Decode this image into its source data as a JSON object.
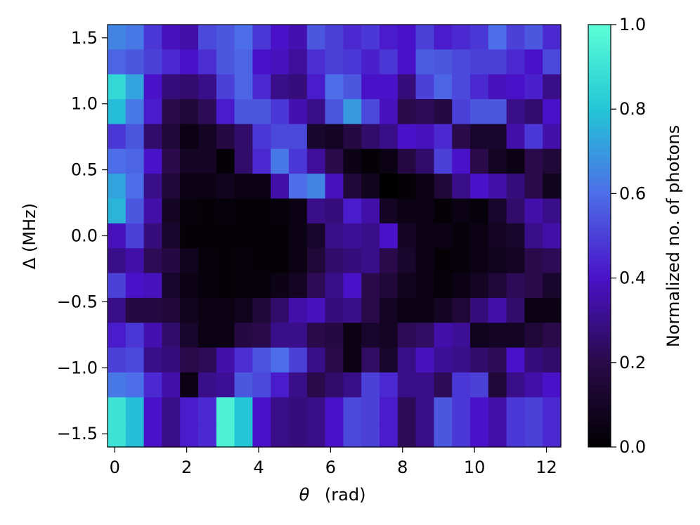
{
  "chart_data": {
    "type": "heatmap",
    "title": "",
    "xlabel_symbol": "θ",
    "xlabel_unit": "(rad)",
    "ylabel": "Δ (MHz)",
    "xlim": [
      -0.2,
      12.4
    ],
    "ylim": [
      -1.6,
      1.6
    ],
    "x_ticks": [
      0,
      2,
      4,
      6,
      8,
      10,
      12
    ],
    "x_tick_labels": [
      "0",
      "2",
      "4",
      "6",
      "8",
      "10",
      "12"
    ],
    "y_ticks": [
      1.5,
      1.0,
      0.5,
      0.0,
      -0.5,
      -1.0,
      -1.5
    ],
    "y_tick_labels": [
      "1.5",
      "1.0",
      "0.5",
      "0.0",
      "−0.5",
      "−1.0",
      "−1.5"
    ],
    "n_cols": 25,
    "n_rows": 17,
    "row_order": "top-to-bottom (Δ from +1.6 to −1.6 MHz)",
    "values": [
      [
        0.65,
        0.62,
        0.48,
        0.38,
        0.35,
        0.52,
        0.55,
        0.6,
        0.48,
        0.4,
        0.36,
        0.55,
        0.5,
        0.45,
        0.48,
        0.42,
        0.4,
        0.5,
        0.42,
        0.45,
        0.48,
        0.6,
        0.5,
        0.55,
        0.45
      ],
      [
        0.58,
        0.55,
        0.5,
        0.45,
        0.4,
        0.46,
        0.55,
        0.58,
        0.4,
        0.38,
        0.33,
        0.46,
        0.5,
        0.48,
        0.43,
        0.48,
        0.4,
        0.56,
        0.55,
        0.52,
        0.5,
        0.5,
        0.45,
        0.4,
        0.52
      ],
      [
        0.86,
        0.72,
        0.4,
        0.28,
        0.26,
        0.3,
        0.5,
        0.58,
        0.45,
        0.3,
        0.28,
        0.42,
        0.6,
        0.55,
        0.4,
        0.4,
        0.28,
        0.5,
        0.58,
        0.52,
        0.45,
        0.38,
        0.4,
        0.43,
        0.3
      ],
      [
        0.78,
        0.62,
        0.42,
        0.2,
        0.15,
        0.22,
        0.42,
        0.55,
        0.55,
        0.48,
        0.36,
        0.3,
        0.55,
        0.7,
        0.52,
        0.38,
        0.2,
        0.22,
        0.18,
        0.5,
        0.55,
        0.55,
        0.3,
        0.26,
        0.4
      ],
      [
        0.48,
        0.55,
        0.25,
        0.15,
        0.05,
        0.1,
        0.18,
        0.25,
        0.48,
        0.52,
        0.52,
        0.12,
        0.1,
        0.18,
        0.25,
        0.3,
        0.4,
        0.38,
        0.45,
        0.2,
        0.12,
        0.12,
        0.35,
        0.48,
        0.35
      ],
      [
        0.6,
        0.58,
        0.4,
        0.2,
        0.1,
        0.1,
        0.02,
        0.25,
        0.45,
        0.62,
        0.48,
        0.33,
        0.2,
        0.06,
        0.02,
        0.05,
        0.18,
        0.25,
        0.5,
        0.4,
        0.2,
        0.1,
        0.05,
        0.2,
        0.15
      ],
      [
        0.72,
        0.6,
        0.3,
        0.15,
        0.05,
        0.05,
        0.08,
        0.05,
        0.05,
        0.35,
        0.6,
        0.65,
        0.38,
        0.15,
        0.08,
        0.0,
        0.02,
        0.05,
        0.15,
        0.3,
        0.4,
        0.35,
        0.28,
        0.2,
        0.08
      ],
      [
        0.76,
        0.55,
        0.35,
        0.1,
        0.03,
        0.02,
        0.03,
        0.02,
        0.02,
        0.03,
        0.05,
        0.3,
        0.28,
        0.42,
        0.35,
        0.1,
        0.05,
        0.05,
        0.02,
        0.05,
        0.03,
        0.12,
        0.25,
        0.35,
        0.3
      ],
      [
        0.38,
        0.5,
        0.28,
        0.12,
        0.02,
        0.02,
        0.02,
        0.02,
        0.02,
        0.02,
        0.05,
        0.12,
        0.3,
        0.32,
        0.3,
        0.4,
        0.1,
        0.05,
        0.05,
        0.03,
        0.05,
        0.1,
        0.12,
        0.3,
        0.35
      ],
      [
        0.3,
        0.35,
        0.22,
        0.18,
        0.08,
        0.03,
        0.02,
        0.03,
        0.02,
        0.02,
        0.05,
        0.15,
        0.25,
        0.28,
        0.3,
        0.2,
        0.12,
        0.05,
        0.02,
        0.03,
        0.05,
        0.08,
        0.1,
        0.2,
        0.22
      ],
      [
        0.5,
        0.4,
        0.38,
        0.12,
        0.05,
        0.03,
        0.02,
        0.03,
        0.03,
        0.06,
        0.1,
        0.22,
        0.3,
        0.4,
        0.2,
        0.15,
        0.08,
        0.05,
        0.03,
        0.05,
        0.1,
        0.15,
        0.22,
        0.2,
        0.12
      ],
      [
        0.3,
        0.18,
        0.18,
        0.16,
        0.08,
        0.05,
        0.05,
        0.08,
        0.15,
        0.25,
        0.35,
        0.38,
        0.28,
        0.3,
        0.2,
        0.1,
        0.05,
        0.05,
        0.1,
        0.15,
        0.28,
        0.35,
        0.25,
        0.05,
        0.05
      ],
      [
        0.42,
        0.48,
        0.36,
        0.25,
        0.12,
        0.05,
        0.05,
        0.18,
        0.2,
        0.3,
        0.3,
        0.2,
        0.18,
        0.05,
        0.12,
        0.1,
        0.22,
        0.24,
        0.35,
        0.32,
        0.08,
        0.1,
        0.1,
        0.15,
        0.2
      ],
      [
        0.5,
        0.52,
        0.3,
        0.28,
        0.2,
        0.22,
        0.35,
        0.46,
        0.54,
        0.6,
        0.5,
        0.3,
        0.2,
        0.05,
        0.24,
        0.12,
        0.3,
        0.38,
        0.32,
        0.3,
        0.25,
        0.22,
        0.4,
        0.28,
        0.25
      ],
      [
        0.62,
        0.6,
        0.45,
        0.35,
        0.05,
        0.3,
        0.32,
        0.55,
        0.52,
        0.42,
        0.3,
        0.2,
        0.25,
        0.3,
        0.5,
        0.45,
        0.3,
        0.3,
        0.22,
        0.48,
        0.5,
        0.15,
        0.3,
        0.35,
        0.4
      ],
      [
        0.9,
        0.78,
        0.4,
        0.3,
        0.42,
        0.45,
        0.95,
        0.8,
        0.4,
        0.3,
        0.28,
        0.3,
        0.4,
        0.52,
        0.5,
        0.42,
        0.22,
        0.3,
        0.55,
        0.48,
        0.4,
        0.35,
        0.48,
        0.5,
        0.45
      ],
      [
        0.9,
        0.78,
        0.4,
        0.3,
        0.42,
        0.45,
        0.95,
        0.8,
        0.4,
        0.3,
        0.28,
        0.3,
        0.4,
        0.52,
        0.5,
        0.42,
        0.22,
        0.3,
        0.55,
        0.48,
        0.4,
        0.35,
        0.48,
        0.5,
        0.45
      ]
    ],
    "colorbar": {
      "label": "Normalized no. of photons",
      "range": [
        0.0,
        1.0
      ],
      "ticks": [
        0.0,
        0.2,
        0.4,
        0.6,
        0.8,
        1.0
      ],
      "tick_labels": [
        "0.0",
        "0.2",
        "0.4",
        "0.6",
        "0.8",
        "1.0"
      ],
      "color_stops": [
        "#000000",
        "#2a0a4a",
        "#4a12c8",
        "#4c6ee8",
        "#22c6d6",
        "#5cffd6"
      ]
    }
  }
}
